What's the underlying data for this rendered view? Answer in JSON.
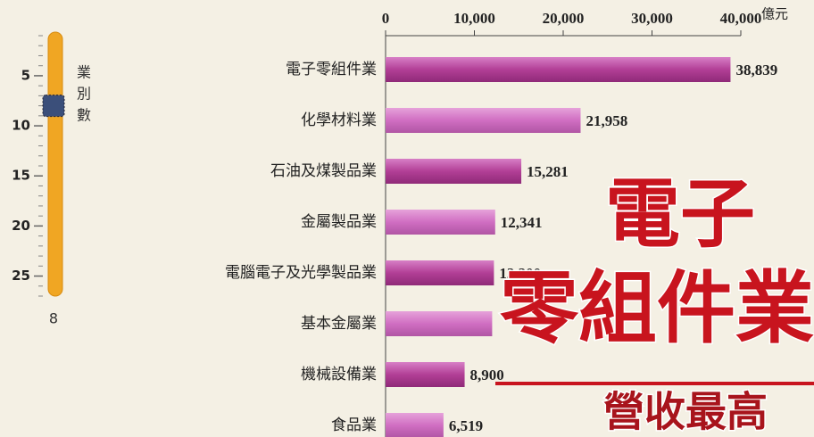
{
  "slider": {
    "label": "業別數",
    "min": 1,
    "max": 27,
    "ticks": [
      5,
      10,
      15,
      20,
      25
    ],
    "value": 8,
    "value_label": "8"
  },
  "chart_data": {
    "type": "hbar",
    "unit": "億元",
    "categories": [
      "電子零組件業",
      "化學材料業",
      "石油及煤製品業",
      "金屬製品業",
      "電腦電子及光學製品業",
      "基本金屬業",
      "機械設備業",
      "食品業"
    ],
    "values": [
      38839,
      21958,
      15281,
      12341,
      12200,
      12000,
      8900,
      6519
    ],
    "value_labels": [
      "38,839",
      "21,958",
      "15,281",
      "12,341",
      "12,200",
      null,
      "8,900",
      "6,519"
    ],
    "colors": [
      "#b23f96",
      "#d06ec2"
    ],
    "xlim": [
      0,
      40000
    ],
    "xticks": [
      0,
      {
        "value": 10000,
        "label": "10,000"
      },
      {
        "value": 20000,
        "label": "20,000"
      },
      {
        "value": 30000,
        "label": "30,000"
      },
      {
        "value": 40000,
        "label": "40,000"
      }
    ]
  },
  "overlay": {
    "line1": "電子",
    "line2": "零組件業",
    "line3": "營收最高"
  }
}
